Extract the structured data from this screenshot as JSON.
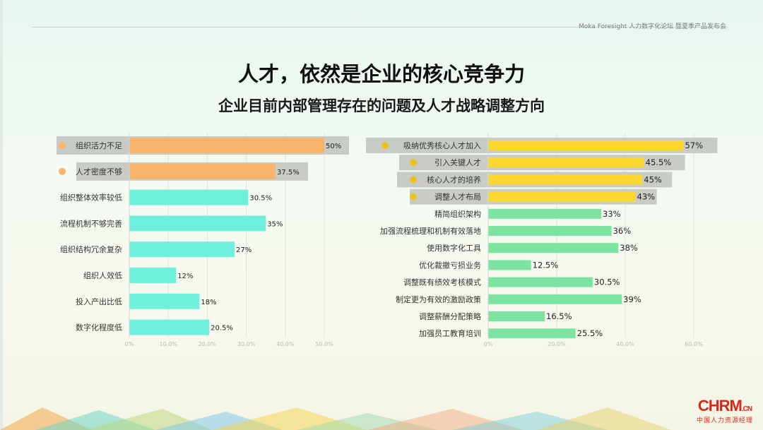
{
  "header": {
    "brand": "Moka Foresight 人力数字化论坛 暨夏季产品发布会"
  },
  "title": "人才，依然是企业的核心竞争力",
  "subtitle": "企业目前内部管理存在的问题及人才战略调整方向",
  "colors": {
    "orange": "#f8b36c",
    "cyan": "#6ff0dd",
    "yellow": "#fcd631",
    "green": "#7de3a0",
    "highlight": "#c9ccc5",
    "dot_yellow": "#e8c21f"
  },
  "chart_data": [
    {
      "type": "bar",
      "orientation": "horizontal",
      "categories": [
        "组织活力不足",
        "人才密度不够",
        "组织整体效率较低",
        "流程机制不够完善",
        "组织结构冗余复杂",
        "组织人效低",
        "投入产出比低",
        "数字化程度低"
      ],
      "values": [
        50,
        37.5,
        30.5,
        35,
        27,
        12,
        18,
        20.5
      ],
      "value_labels": [
        "50%",
        "37.5%",
        "30.5%",
        "35%",
        "27%",
        "12%",
        "18%",
        "20.5%"
      ],
      "highlighted": [
        true,
        true,
        false,
        false,
        false,
        false,
        false,
        false
      ],
      "xlim": [
        0,
        50
      ],
      "x_ticks": [
        "0%",
        "10.0%",
        "20.0%",
        "30.0%",
        "40.0%",
        "50.0%"
      ],
      "grid": true
    },
    {
      "type": "bar",
      "orientation": "horizontal",
      "categories": [
        "吸纳优秀核心人才加入",
        "引入关键人才",
        "核心人才的培养",
        "调整人才布局",
        "精简组织架构",
        "加强流程梳理和机制有效落地",
        "使用数字化工具",
        "优化裁撤亏损业务",
        "调整既有绩效考核模式",
        "制定更为有效的激励政策",
        "调整薪酬分配策略",
        "加强员工教育培训"
      ],
      "values": [
        57,
        45.5,
        45,
        43,
        33,
        36,
        38,
        12.5,
        30.5,
        39,
        16.5,
        25.5
      ],
      "value_labels": [
        "57%",
        "45.5%",
        "45%",
        "43%",
        "33%",
        "36%",
        "38%",
        "12.5%",
        "30.5%",
        "39%",
        "16.5%",
        "25.5%"
      ],
      "highlighted": [
        true,
        true,
        true,
        true,
        false,
        false,
        false,
        false,
        false,
        false,
        false,
        false
      ],
      "xlim": [
        0,
        60
      ],
      "x_ticks": [
        "0%",
        "20.0%",
        "40.0%",
        "60.0%"
      ],
      "grid": true
    }
  ],
  "logo": {
    "main": "CHRM",
    "suffix": ".CN",
    "tagline": "中国人力资源经理"
  }
}
